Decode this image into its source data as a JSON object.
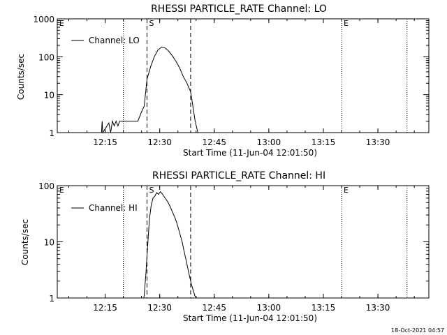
{
  "chart_data": [
    {
      "type": "line",
      "title": "RHESSI PARTICLE_RATE Channel: LO",
      "xlabel": "Start Time (11-Jun-04 12:01:50)",
      "ylabel": "Counts/sec",
      "y_scale": "log",
      "ylim": [
        1,
        1000
      ],
      "xlim": [
        "12:01:50",
        "13:44"
      ],
      "x_ticks": [
        "12:15",
        "12:30",
        "12:45",
        "13:00",
        "13:15",
        "13:30"
      ],
      "y_ticks": [
        "1",
        "10",
        "100",
        "1000"
      ],
      "legend": {
        "placement": "top-left",
        "entries": [
          "Channel: LO"
        ]
      },
      "series": [
        {
          "name": "Channel: LO",
          "x": [
            "12:14:00",
            "12:14:10",
            "12:14:20",
            "12:16:00",
            "12:16:30",
            "12:17:00",
            "12:17:30",
            "12:18:00",
            "12:18:30",
            "12:19:00",
            "12:20:00",
            "12:21:00",
            "12:22:00",
            "12:23:00",
            "12:24:00",
            "12:25:00",
            "12:25:45",
            "12:26:30",
            "12:27:30",
            "12:28:30",
            "12:29:30",
            "12:30:30",
            "12:31:30",
            "12:32:30",
            "12:33:30",
            "12:34:30",
            "12:35:30",
            "12:36:30",
            "12:37:30",
            "12:38:30",
            "12:39:00",
            "12:39:45",
            "12:40:30"
          ],
          "values": [
            1,
            2,
            1,
            1.8,
            1,
            2,
            1.5,
            2,
            1.5,
            2,
            2,
            2,
            2,
            2,
            2,
            3.5,
            5,
            25,
            55,
            100,
            150,
            180,
            170,
            140,
            105,
            75,
            50,
            30,
            20,
            12,
            6,
            2,
            1
          ]
        }
      ],
      "markers": [
        {
          "label": "S",
          "time": "12:26:30",
          "style": "dashed"
        },
        {
          "label": "",
          "time": "12:38:30",
          "style": "dashed"
        },
        {
          "label": "",
          "time": "12:20:00",
          "style": "dotted"
        },
        {
          "label": "E",
          "time": "13:20:00",
          "style": "dotted"
        },
        {
          "label": "",
          "time": "13:38:00",
          "style": "dotted"
        },
        {
          "label": "E",
          "time": "12:01:50",
          "style": "none"
        }
      ]
    },
    {
      "type": "line",
      "title": "RHESSI PARTICLE_RATE Channel: HI",
      "xlabel": "Start Time (11-Jun-04 12:01:50)",
      "ylabel": "Counts/sec",
      "y_scale": "log",
      "ylim": [
        1,
        100
      ],
      "xlim": [
        "12:01:50",
        "13:44"
      ],
      "x_ticks": [
        "12:15",
        "12:30",
        "12:45",
        "13:00",
        "13:15",
        "13:30"
      ],
      "y_ticks": [
        "1",
        "10",
        "100"
      ],
      "legend": {
        "placement": "top-left",
        "entries": [
          "Channel: HI"
        ]
      },
      "series": [
        {
          "name": "Channel: HI",
          "x": [
            "12:25:40",
            "12:26:10",
            "12:26:40",
            "12:27:10",
            "12:27:40",
            "12:28:10",
            "12:28:40",
            "12:29:10",
            "12:29:40",
            "12:30:10",
            "12:30:40",
            "12:31:10",
            "12:31:40",
            "12:32:10",
            "12:32:40",
            "12:33:10",
            "12:33:40",
            "12:34:10",
            "12:34:40",
            "12:35:10",
            "12:35:40",
            "12:36:10",
            "12:36:40",
            "12:37:10",
            "12:37:40",
            "12:38:10",
            "12:38:40",
            "12:39:10",
            "12:39:40",
            "12:40:10"
          ],
          "values": [
            1,
            2.5,
            8,
            25,
            45,
            60,
            65,
            75,
            70,
            78,
            72,
            65,
            58,
            52,
            45,
            38,
            32,
            27,
            22,
            17,
            13,
            10,
            7,
            5,
            3.5,
            2.5,
            1.8,
            1.4,
            1.1,
            1
          ]
        }
      ],
      "markers": [
        {
          "label": "S",
          "time": "12:26:30",
          "style": "dashed"
        },
        {
          "label": "",
          "time": "12:38:30",
          "style": "dashed"
        },
        {
          "label": "",
          "time": "12:20:00",
          "style": "dotted"
        },
        {
          "label": "E",
          "time": "13:20:00",
          "style": "dotted"
        },
        {
          "label": "",
          "time": "13:38:00",
          "style": "dotted"
        },
        {
          "label": "E",
          "time": "12:01:50",
          "style": "none"
        }
      ]
    }
  ],
  "footer": {
    "timestamp": "18-Oct-2021 04:57"
  }
}
